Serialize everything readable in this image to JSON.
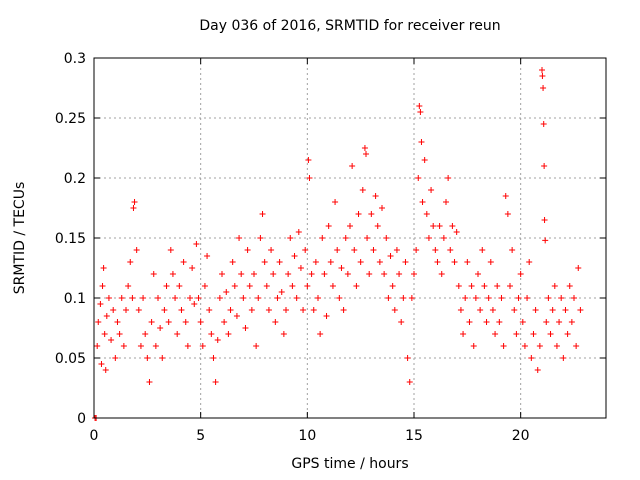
{
  "chart_data": {
    "type": "scatter",
    "title": "Day 036 of 2016, SRMTID for receiver reun",
    "xlabel": "GPS time / hours",
    "ylabel": "SRMTID / TECUs",
    "xlim": [
      0,
      24
    ],
    "ylim": [
      0,
      0.3
    ],
    "xticks": [
      0,
      5,
      10,
      15,
      20
    ],
    "xtick_labels": [
      "0",
      "5",
      "10",
      "15",
      "20"
    ],
    "yticks": [
      0,
      0.05,
      0.1,
      0.15,
      0.2,
      0.25,
      0.3
    ],
    "ytick_labels": [
      "0",
      "0.05",
      "0.1",
      "0.15",
      "0.2",
      "0.25",
      "0.3"
    ],
    "grid": true,
    "marker": "+",
    "colors": {
      "points": "#ff0000",
      "grid": "#a0a0a0",
      "axes": "#000000"
    },
    "series": [
      {
        "name": "SRMTID",
        "points": [
          [
            0.05,
            0.0
          ],
          [
            0.1,
            0.0
          ],
          [
            0.15,
            0.06
          ],
          [
            0.2,
            0.08
          ],
          [
            0.3,
            0.095
          ],
          [
            0.35,
            0.045
          ],
          [
            0.4,
            0.11
          ],
          [
            0.45,
            0.125
          ],
          [
            0.5,
            0.07
          ],
          [
            0.55,
            0.04
          ],
          [
            0.6,
            0.085
          ],
          [
            0.7,
            0.1
          ],
          [
            0.8,
            0.065
          ],
          [
            0.9,
            0.09
          ],
          [
            1.0,
            0.05
          ],
          [
            1.1,
            0.08
          ],
          [
            1.2,
            0.07
          ],
          [
            1.3,
            0.1
          ],
          [
            1.4,
            0.06
          ],
          [
            1.5,
            0.09
          ],
          [
            1.6,
            0.11
          ],
          [
            1.7,
            0.13
          ],
          [
            1.8,
            0.1
          ],
          [
            1.85,
            0.175
          ],
          [
            1.9,
            0.18
          ],
          [
            2.0,
            0.14
          ],
          [
            2.1,
            0.09
          ],
          [
            2.2,
            0.06
          ],
          [
            2.3,
            0.1
          ],
          [
            2.4,
            0.07
          ],
          [
            2.5,
            0.05
          ],
          [
            2.6,
            0.03
          ],
          [
            2.7,
            0.08
          ],
          [
            2.8,
            0.12
          ],
          [
            2.9,
            0.06
          ],
          [
            3.0,
            0.1
          ],
          [
            3.1,
            0.075
          ],
          [
            3.2,
            0.05
          ],
          [
            3.3,
            0.09
          ],
          [
            3.4,
            0.11
          ],
          [
            3.5,
            0.08
          ],
          [
            3.6,
            0.14
          ],
          [
            3.7,
            0.12
          ],
          [
            3.8,
            0.1
          ],
          [
            3.9,
            0.07
          ],
          [
            4.0,
            0.11
          ],
          [
            4.1,
            0.09
          ],
          [
            4.2,
            0.13
          ],
          [
            4.3,
            0.08
          ],
          [
            4.4,
            0.06
          ],
          [
            4.5,
            0.1
          ],
          [
            4.6,
            0.125
          ],
          [
            4.7,
            0.095
          ],
          [
            4.8,
            0.145
          ],
          [
            4.9,
            0.1
          ],
          [
            5.0,
            0.08
          ],
          [
            5.1,
            0.06
          ],
          [
            5.2,
            0.11
          ],
          [
            5.3,
            0.135
          ],
          [
            5.4,
            0.09
          ],
          [
            5.5,
            0.07
          ],
          [
            5.6,
            0.05
          ],
          [
            5.7,
            0.03
          ],
          [
            5.8,
            0.065
          ],
          [
            5.9,
            0.1
          ],
          [
            6.0,
            0.12
          ],
          [
            6.1,
            0.08
          ],
          [
            6.2,
            0.105
          ],
          [
            6.3,
            0.07
          ],
          [
            6.4,
            0.09
          ],
          [
            6.5,
            0.13
          ],
          [
            6.6,
            0.11
          ],
          [
            6.7,
            0.085
          ],
          [
            6.8,
            0.15
          ],
          [
            6.9,
            0.12
          ],
          [
            7.0,
            0.1
          ],
          [
            7.1,
            0.075
          ],
          [
            7.2,
            0.14
          ],
          [
            7.3,
            0.11
          ],
          [
            7.4,
            0.09
          ],
          [
            7.5,
            0.12
          ],
          [
            7.6,
            0.06
          ],
          [
            7.7,
            0.1
          ],
          [
            7.8,
            0.15
          ],
          [
            7.9,
            0.17
          ],
          [
            8.0,
            0.13
          ],
          [
            8.1,
            0.11
          ],
          [
            8.2,
            0.09
          ],
          [
            8.3,
            0.14
          ],
          [
            8.4,
            0.12
          ],
          [
            8.5,
            0.08
          ],
          [
            8.6,
            0.1
          ],
          [
            8.7,
            0.13
          ],
          [
            8.8,
            0.105
          ],
          [
            8.9,
            0.07
          ],
          [
            9.0,
            0.09
          ],
          [
            9.1,
            0.12
          ],
          [
            9.2,
            0.15
          ],
          [
            9.3,
            0.11
          ],
          [
            9.4,
            0.135
          ],
          [
            9.5,
            0.1
          ],
          [
            9.6,
            0.155
          ],
          [
            9.7,
            0.125
          ],
          [
            9.8,
            0.09
          ],
          [
            9.9,
            0.14
          ],
          [
            10.0,
            0.11
          ],
          [
            10.05,
            0.215
          ],
          [
            10.1,
            0.2
          ],
          [
            10.2,
            0.12
          ],
          [
            10.3,
            0.09
          ],
          [
            10.4,
            0.13
          ],
          [
            10.5,
            0.1
          ],
          [
            10.6,
            0.07
          ],
          [
            10.7,
            0.15
          ],
          [
            10.8,
            0.12
          ],
          [
            10.9,
            0.085
          ],
          [
            11.0,
            0.16
          ],
          [
            11.1,
            0.13
          ],
          [
            11.2,
            0.11
          ],
          [
            11.3,
            0.18
          ],
          [
            11.4,
            0.14
          ],
          [
            11.5,
            0.1
          ],
          [
            11.6,
            0.125
          ],
          [
            11.7,
            0.09
          ],
          [
            11.8,
            0.15
          ],
          [
            11.9,
            0.12
          ],
          [
            12.0,
            0.16
          ],
          [
            12.1,
            0.21
          ],
          [
            12.2,
            0.14
          ],
          [
            12.3,
            0.11
          ],
          [
            12.4,
            0.17
          ],
          [
            12.5,
            0.13
          ],
          [
            12.6,
            0.19
          ],
          [
            12.7,
            0.225
          ],
          [
            12.75,
            0.22
          ],
          [
            12.8,
            0.15
          ],
          [
            12.9,
            0.12
          ],
          [
            13.0,
            0.17
          ],
          [
            13.1,
            0.14
          ],
          [
            13.2,
            0.185
          ],
          [
            13.3,
            0.16
          ],
          [
            13.4,
            0.13
          ],
          [
            13.5,
            0.175
          ],
          [
            13.6,
            0.12
          ],
          [
            13.7,
            0.15
          ],
          [
            13.8,
            0.1
          ],
          [
            13.9,
            0.135
          ],
          [
            14.0,
            0.11
          ],
          [
            14.1,
            0.09
          ],
          [
            14.2,
            0.14
          ],
          [
            14.3,
            0.12
          ],
          [
            14.4,
            0.08
          ],
          [
            14.5,
            0.1
          ],
          [
            14.6,
            0.13
          ],
          [
            14.7,
            0.05
          ],
          [
            14.8,
            0.03
          ],
          [
            14.9,
            0.1
          ],
          [
            15.0,
            0.12
          ],
          [
            15.1,
            0.14
          ],
          [
            15.2,
            0.2
          ],
          [
            15.25,
            0.26
          ],
          [
            15.3,
            0.255
          ],
          [
            15.35,
            0.23
          ],
          [
            15.4,
            0.18
          ],
          [
            15.5,
            0.215
          ],
          [
            15.6,
            0.17
          ],
          [
            15.7,
            0.15
          ],
          [
            15.8,
            0.19
          ],
          [
            15.9,
            0.16
          ],
          [
            16.0,
            0.14
          ],
          [
            16.1,
            0.13
          ],
          [
            16.2,
            0.16
          ],
          [
            16.3,
            0.12
          ],
          [
            16.4,
            0.15
          ],
          [
            16.5,
            0.18
          ],
          [
            16.6,
            0.2
          ],
          [
            16.7,
            0.14
          ],
          [
            16.8,
            0.16
          ],
          [
            16.9,
            0.13
          ],
          [
            17.0,
            0.155
          ],
          [
            17.1,
            0.11
          ],
          [
            17.2,
            0.09
          ],
          [
            17.3,
            0.07
          ],
          [
            17.4,
            0.1
          ],
          [
            17.5,
            0.13
          ],
          [
            17.6,
            0.08
          ],
          [
            17.7,
            0.11
          ],
          [
            17.8,
            0.06
          ],
          [
            17.9,
            0.1
          ],
          [
            18.0,
            0.12
          ],
          [
            18.1,
            0.09
          ],
          [
            18.2,
            0.14
          ],
          [
            18.3,
            0.11
          ],
          [
            18.4,
            0.08
          ],
          [
            18.5,
            0.1
          ],
          [
            18.6,
            0.13
          ],
          [
            18.7,
            0.09
          ],
          [
            18.8,
            0.07
          ],
          [
            18.9,
            0.11
          ],
          [
            19.0,
            0.08
          ],
          [
            19.1,
            0.1
          ],
          [
            19.2,
            0.06
          ],
          [
            19.3,
            0.185
          ],
          [
            19.4,
            0.17
          ],
          [
            19.5,
            0.11
          ],
          [
            19.6,
            0.14
          ],
          [
            19.7,
            0.09
          ],
          [
            19.8,
            0.07
          ],
          [
            19.9,
            0.1
          ],
          [
            20.0,
            0.12
          ],
          [
            20.1,
            0.08
          ],
          [
            20.2,
            0.06
          ],
          [
            20.3,
            0.1
          ],
          [
            20.4,
            0.13
          ],
          [
            20.5,
            0.05
          ],
          [
            20.6,
            0.07
          ],
          [
            20.7,
            0.09
          ],
          [
            20.8,
            0.04
          ],
          [
            20.9,
            0.06
          ],
          [
            21.0,
            0.29
          ],
          [
            21.02,
            0.285
          ],
          [
            21.05,
            0.275
          ],
          [
            21.08,
            0.245
          ],
          [
            21.1,
            0.21
          ],
          [
            21.12,
            0.165
          ],
          [
            21.15,
            0.148
          ],
          [
            21.2,
            0.08
          ],
          [
            21.3,
            0.1
          ],
          [
            21.4,
            0.07
          ],
          [
            21.5,
            0.09
          ],
          [
            21.6,
            0.11
          ],
          [
            21.7,
            0.06
          ],
          [
            21.8,
            0.08
          ],
          [
            21.9,
            0.1
          ],
          [
            22.0,
            0.05
          ],
          [
            22.1,
            0.09
          ],
          [
            22.2,
            0.07
          ],
          [
            22.3,
            0.11
          ],
          [
            22.4,
            0.08
          ],
          [
            22.5,
            0.1
          ],
          [
            22.6,
            0.06
          ],
          [
            22.7,
            0.125
          ],
          [
            22.8,
            0.09
          ]
        ]
      }
    ]
  }
}
